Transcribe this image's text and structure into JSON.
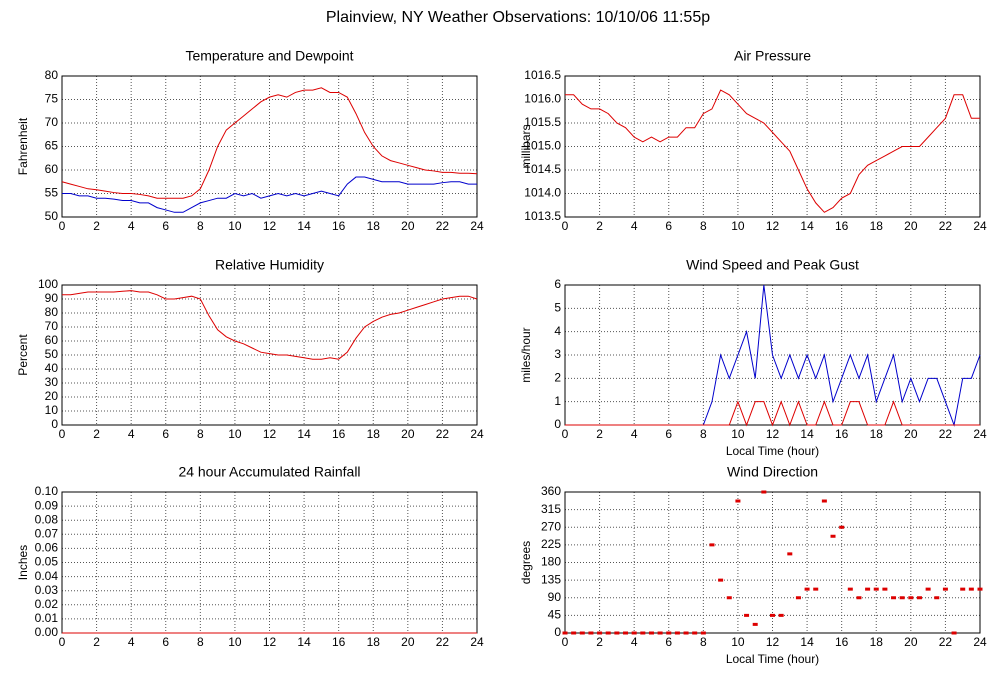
{
  "title": "Plainview, NY Weather Observations: 10/10/06 11:55p",
  "chart_data": [
    {
      "type": "line",
      "title": "Temperature and Dewpoint",
      "y_label": "Fahrenheit",
      "x": [
        0,
        0.5,
        1,
        1.5,
        2,
        2.5,
        3,
        3.5,
        4,
        4.5,
        5,
        5.5,
        6,
        6.5,
        7,
        7.5,
        8,
        8.5,
        9,
        9.5,
        10,
        10.5,
        11,
        11.5,
        12,
        12.5,
        13,
        13.5,
        14,
        14.5,
        15,
        15.5,
        16,
        16.5,
        17,
        17.5,
        18,
        18.5,
        19,
        19.5,
        20,
        20.5,
        21,
        21.5,
        22,
        22.5,
        23,
        23.5,
        24
      ],
      "series": [
        {
          "color": "#dd0000",
          "values": [
            57.5,
            57,
            56.5,
            56,
            55.8,
            55.5,
            55.2,
            55,
            55,
            54.8,
            54.5,
            54,
            54,
            54,
            54,
            54.5,
            56,
            60,
            65,
            68.5,
            70,
            71.5,
            73,
            74.5,
            75.5,
            76,
            75.5,
            76.5,
            77,
            77,
            77.5,
            76.5,
            76.5,
            75.5,
            72,
            68,
            65,
            63,
            62,
            61.5,
            61,
            60.5,
            60,
            59.8,
            59.5,
            59.5,
            59.3,
            59.3,
            59.2
          ]
        },
        {
          "color": "#0000cc",
          "values": [
            55,
            55,
            54.5,
            54.5,
            54,
            54,
            53.8,
            53.5,
            53.5,
            53,
            53,
            52,
            51.5,
            51,
            51,
            52,
            53,
            53.5,
            54,
            54,
            55,
            54.5,
            55,
            54,
            54.5,
            55,
            54.5,
            55,
            54.5,
            55,
            55.5,
            55,
            54.5,
            57,
            58.5,
            58.5,
            58,
            57.5,
            57.5,
            57.5,
            57,
            57,
            57,
            57,
            57.3,
            57.5,
            57.5,
            57,
            57
          ]
        }
      ],
      "xlim": [
        0,
        24
      ],
      "ylim": [
        50,
        80
      ],
      "xticks": [
        0,
        2,
        4,
        6,
        8,
        10,
        12,
        14,
        16,
        18,
        20,
        22,
        24
      ],
      "yticks": [
        50,
        55,
        60,
        65,
        70,
        75,
        80
      ],
      "grid": true
    },
    {
      "type": "line",
      "title": "Air Pressure",
      "y_label": "millibars",
      "x": [
        0,
        0.5,
        1,
        1.5,
        2,
        2.5,
        3,
        3.5,
        4,
        4.5,
        5,
        5.5,
        6,
        6.5,
        7,
        7.5,
        8,
        8.5,
        9,
        9.5,
        10,
        10.5,
        11,
        11.5,
        12,
        12.5,
        13,
        13.5,
        14,
        14.5,
        15,
        15.5,
        16,
        16.5,
        17,
        17.5,
        18,
        18.5,
        19,
        19.5,
        20,
        20.5,
        21,
        21.5,
        22,
        22.5,
        23,
        23.5,
        24
      ],
      "series": [
        {
          "color": "#dd0000",
          "values": [
            1016.1,
            1016.1,
            1015.9,
            1015.8,
            1015.8,
            1015.7,
            1015.5,
            1015.4,
            1015.2,
            1015.1,
            1015.2,
            1015.1,
            1015.2,
            1015.2,
            1015.4,
            1015.4,
            1015.7,
            1015.8,
            1016.2,
            1016.1,
            1015.9,
            1015.7,
            1015.6,
            1015.5,
            1015.3,
            1015.1,
            1014.9,
            1014.5,
            1014.1,
            1013.8,
            1013.6,
            1013.7,
            1013.9,
            1014.0,
            1014.4,
            1014.6,
            1014.7,
            1014.8,
            1014.9,
            1015.0,
            1015.0,
            1015.0,
            1015.2,
            1015.4,
            1015.6,
            1016.1,
            1016.1,
            1015.6,
            1015.6
          ]
        }
      ],
      "xlim": [
        0,
        24
      ],
      "ylim": [
        1013.5,
        1016.5
      ],
      "xticks": [
        0,
        2,
        4,
        6,
        8,
        10,
        12,
        14,
        16,
        18,
        20,
        22,
        24
      ],
      "yticks": [
        1013.5,
        {
          "value": 1014,
          "label": "1014.0"
        },
        1014.5,
        {
          "value": 1015,
          "label": "1015.0"
        },
        1015.5,
        {
          "value": 1016,
          "label": "1016.0"
        },
        1016.5
      ],
      "grid": true
    },
    {
      "type": "line",
      "title": "Relative Humidity",
      "y_label": "Percent",
      "x": [
        0,
        0.5,
        1,
        1.5,
        2,
        2.5,
        3,
        3.5,
        4,
        4.5,
        5,
        5.5,
        6,
        6.5,
        7,
        7.5,
        8,
        8.5,
        9,
        9.5,
        10,
        10.5,
        11,
        11.5,
        12,
        12.5,
        13,
        13.5,
        14,
        14.5,
        15,
        15.5,
        16,
        16.5,
        17,
        17.5,
        18,
        18.5,
        19,
        19.5,
        20,
        20.5,
        21,
        21.5,
        22,
        22.5,
        23,
        23.5,
        24
      ],
      "series": [
        {
          "color": "#dd0000",
          "values": [
            93,
            93,
            94,
            95,
            95,
            95,
            95,
            95.5,
            96,
            95,
            95,
            93,
            90,
            90,
            91,
            92,
            90,
            78,
            68,
            63,
            60,
            58,
            55,
            52,
            51,
            50,
            50,
            49,
            48,
            47,
            47,
            48,
            47,
            52,
            62,
            70,
            74,
            77,
            79,
            80,
            82,
            84,
            86,
            88,
            90,
            91,
            92,
            92,
            90
          ]
        }
      ],
      "xlim": [
        0,
        24
      ],
      "ylim": [
        0,
        100
      ],
      "xticks": [
        0,
        2,
        4,
        6,
        8,
        10,
        12,
        14,
        16,
        18,
        20,
        22,
        24
      ],
      "yticks": [
        0,
        10,
        20,
        30,
        40,
        50,
        60,
        70,
        80,
        90,
        100
      ],
      "grid": true
    },
    {
      "type": "line",
      "title": "Wind Speed and Peak Gust",
      "x_label": "Local Time (hour)",
      "y_label": "miles/hour",
      "x": [
        0,
        0.5,
        1,
        1.5,
        2,
        2.5,
        3,
        3.5,
        4,
        4.5,
        5,
        5.5,
        6,
        6.5,
        7,
        7.5,
        8,
        8.5,
        9,
        9.5,
        10,
        10.5,
        11,
        11.5,
        12,
        12.5,
        13,
        13.5,
        14,
        14.5,
        15,
        15.5,
        16,
        16.5,
        17,
        17.5,
        18,
        18.5,
        19,
        19.5,
        20,
        20.5,
        21,
        21.5,
        22,
        22.5,
        23,
        23.5,
        24
      ],
      "series": [
        {
          "color": "#0000cc",
          "values": [
            0,
            0,
            0,
            0,
            0,
            0,
            0,
            0,
            0,
            0,
            0,
            0,
            0,
            0,
            0,
            0,
            0,
            1,
            3,
            2,
            3,
            4,
            2,
            6,
            3,
            2,
            3,
            2,
            3,
            2,
            3,
            1,
            2,
            3,
            2,
            3,
            1,
            2,
            3,
            1,
            2,
            1,
            2,
            2,
            1,
            0,
            2,
            2,
            3
          ]
        },
        {
          "color": "#dd0000",
          "values": [
            0,
            0,
            0,
            0,
            0,
            0,
            0,
            0,
            0,
            0,
            0,
            0,
            0,
            0,
            0,
            0,
            0,
            0,
            0,
            0,
            1,
            0,
            1,
            1,
            0,
            1,
            0,
            1,
            0,
            0,
            1,
            0,
            0,
            1,
            1,
            0,
            0,
            0,
            1,
            0,
            0,
            0,
            0,
            0,
            0,
            0,
            0,
            0,
            0
          ]
        }
      ],
      "xlim": [
        0,
        24
      ],
      "ylim": [
        0,
        6
      ],
      "xticks": [
        0,
        2,
        4,
        6,
        8,
        10,
        12,
        14,
        16,
        18,
        20,
        22,
        24
      ],
      "yticks": [
        0,
        1,
        2,
        3,
        4,
        5,
        6
      ],
      "grid": true
    },
    {
      "type": "line",
      "title": "24 hour Accumulated Rainfall",
      "y_label": "Inches",
      "x": [
        0,
        24
      ],
      "series": [
        {
          "color": "#dd0000",
          "values": [
            0,
            0
          ]
        }
      ],
      "xlim": [
        0,
        24
      ],
      "ylim": [
        0,
        0.1
      ],
      "xticks": [
        0,
        2,
        4,
        6,
        8,
        10,
        12,
        14,
        16,
        18,
        20,
        22,
        24
      ],
      "yticks": [
        {
          "value": 0,
          "label": "0.00"
        },
        0.01,
        0.02,
        0.03,
        0.04,
        0.05,
        0.06,
        0.07,
        0.08,
        0.09,
        {
          "value": 0.1,
          "label": "0.10"
        }
      ],
      "grid": true
    },
    {
      "type": "scatter",
      "title": "Wind Direction",
      "x_label": "Local Time (hour)",
      "y_label": "degrees",
      "x": [
        0,
        0.5,
        1,
        1.5,
        2,
        2.5,
        3,
        3.5,
        4,
        4.5,
        5,
        5.5,
        6,
        6.5,
        7,
        7.5,
        8,
        8.5,
        9,
        9.5,
        10,
        10.5,
        11,
        11.5,
        12,
        12.5,
        13,
        13.5,
        14,
        14.5,
        15,
        15.5,
        16,
        16.5,
        17,
        17.5,
        18,
        18.5,
        19,
        19.5,
        20,
        20.5,
        21,
        21.5,
        22,
        22.5,
        23,
        23.5,
        24
      ],
      "series": [
        {
          "color": "#dd0000",
          "values": [
            0,
            0,
            0,
            0,
            0,
            0,
            0,
            0,
            0,
            0,
            0,
            0,
            0,
            0,
            0,
            0,
            0,
            225,
            135,
            90,
            337,
            45,
            22,
            360,
            45,
            45,
            202,
            90,
            112,
            112,
            337,
            247,
            270,
            112,
            90,
            112,
            112,
            112,
            90,
            90,
            90,
            90,
            112,
            90,
            112,
            0,
            112,
            112,
            112
          ]
        }
      ],
      "xlim": [
        0,
        24
      ],
      "ylim": [
        0,
        360
      ],
      "xticks": [
        0,
        2,
        4,
        6,
        8,
        10,
        12,
        14,
        16,
        18,
        20,
        22,
        24
      ],
      "yticks": [
        0,
        45,
        90,
        135,
        180,
        225,
        270,
        315,
        360
      ],
      "grid": true
    }
  ]
}
